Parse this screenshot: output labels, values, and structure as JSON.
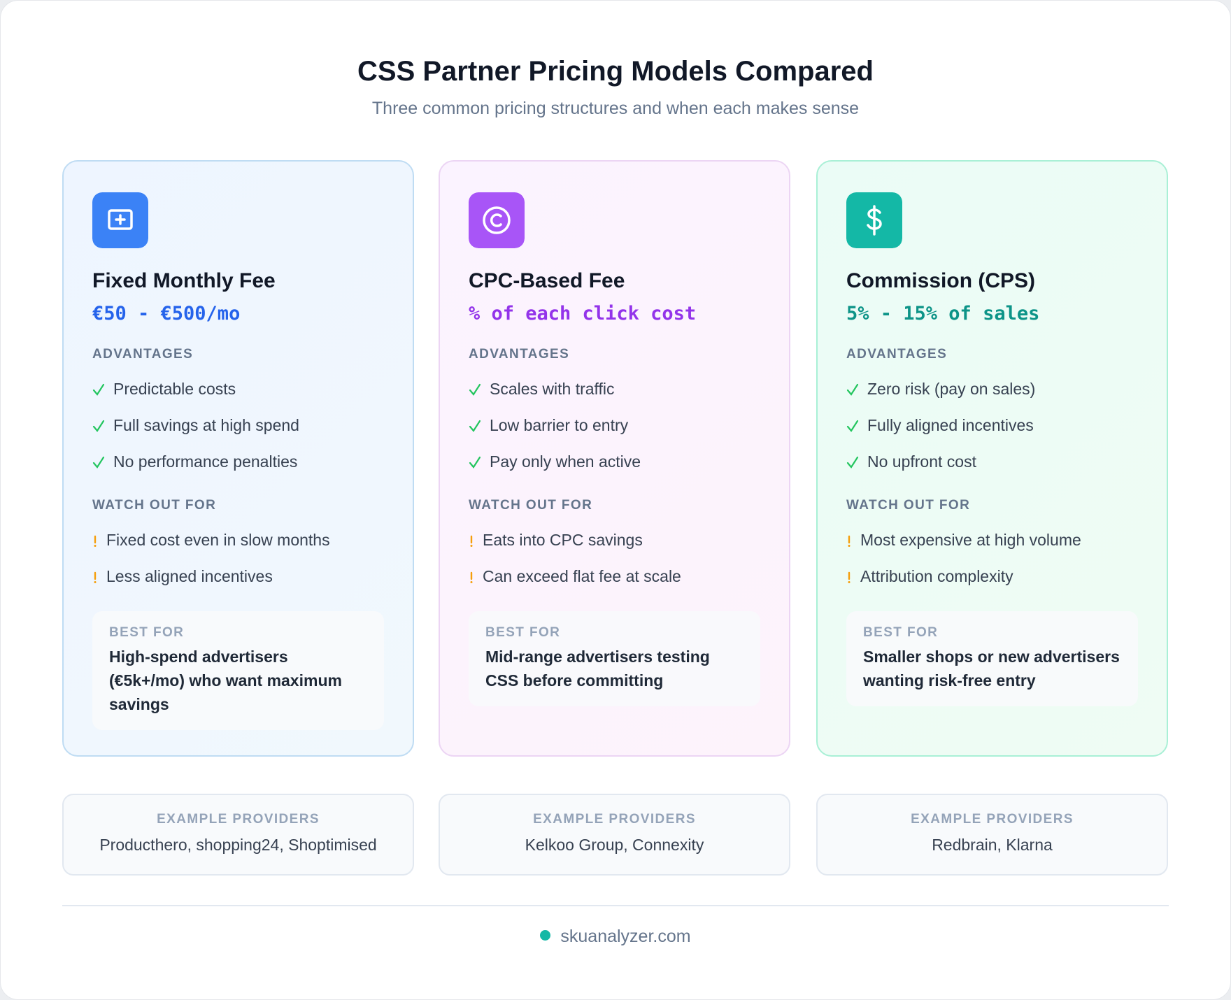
{
  "header": {
    "title": "CSS Partner Pricing Models Compared",
    "subtitle": "Three common pricing structures and when each makes sense"
  },
  "cards": [
    {
      "title": "Fixed Monthly Fee",
      "price": "€50 - €500/mo",
      "advantages_label": "ADVANTAGES",
      "advantages": [
        "Predictable costs",
        "Full savings at high spend",
        "No performance penalties"
      ],
      "watch_label": "WATCH OUT FOR",
      "watch": [
        "Fixed cost even in slow months",
        "Less aligned incentives"
      ],
      "best_for_label": "BEST FOR",
      "best_for": "High-spend advertisers (€5k+/mo) who want maximum savings"
    },
    {
      "title": "CPC-Based Fee",
      "price": "% of each click cost",
      "advantages_label": "ADVANTAGES",
      "advantages": [
        "Scales with traffic",
        "Low barrier to entry",
        "Pay only when active"
      ],
      "watch_label": "WATCH OUT FOR",
      "watch": [
        "Eats into CPC savings",
        "Can exceed flat fee at scale"
      ],
      "best_for_label": "BEST FOR",
      "best_for": "Mid-range advertisers testing CSS before committing"
    },
    {
      "title": "Commission (CPS)",
      "price": "5% - 15% of sales",
      "advantages_label": "ADVANTAGES",
      "advantages": [
        "Zero risk (pay on sales)",
        "Fully aligned incentives",
        "No upfront cost"
      ],
      "watch_label": "WATCH OUT FOR",
      "watch": [
        "Most expensive at high volume",
        "Attribution complexity"
      ],
      "best_for_label": "BEST FOR",
      "best_for": "Smaller shops or new advertisers wanting risk-free entry"
    }
  ],
  "providers": [
    {
      "label": "EXAMPLE PROVIDERS",
      "names": "Producthero, shopping24, Shoptimised"
    },
    {
      "label": "EXAMPLE PROVIDERS",
      "names": "Kelkoo Group, Connexity"
    },
    {
      "label": "EXAMPLE PROVIDERS",
      "names": "Redbrain, Klarna"
    }
  ],
  "footer": {
    "site": "skuanalyzer.com"
  }
}
